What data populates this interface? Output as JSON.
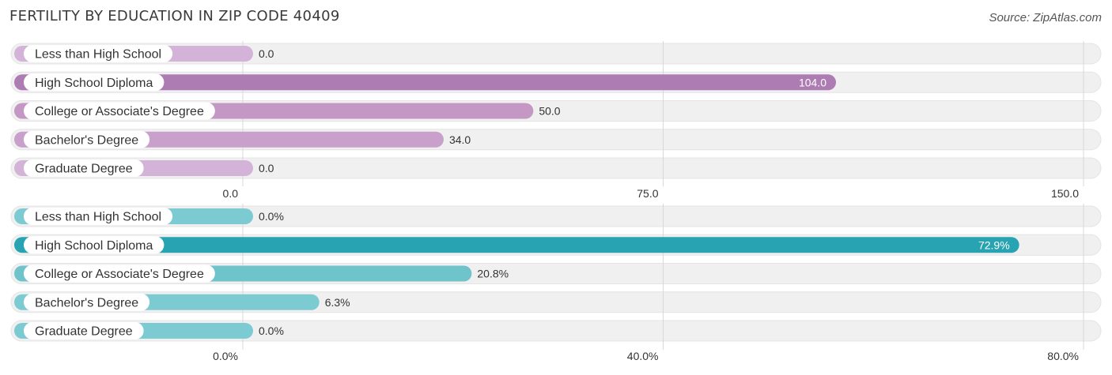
{
  "title": "FERTILITY BY EDUCATION IN ZIP CODE 40409",
  "source": "Source: ZipAtlas.com",
  "chart_data": [
    {
      "type": "bar",
      "orientation": "horizontal",
      "categories": [
        "Less than High School",
        "High School Diploma",
        "College or Associate's Degree",
        "Bachelor's Degree",
        "Graduate Degree"
      ],
      "values": [
        0.0,
        104.0,
        50.0,
        34.0,
        0.0
      ],
      "value_labels": [
        "0.0",
        "104.0",
        "50.0",
        "34.0",
        "0.0"
      ],
      "xlim": [
        0,
        150
      ],
      "ticks": [
        "0.0",
        "75.0",
        "150.0"
      ],
      "tick_values": [
        0,
        75,
        150
      ],
      "colors": [
        "#d4b3d8",
        "#ad7cb3",
        "#c597c5",
        "#c8a0cb",
        "#d4b3d8"
      ],
      "grid": true
    },
    {
      "type": "bar",
      "orientation": "horizontal",
      "categories": [
        "Less than High School",
        "High School Diploma",
        "College or Associate's Degree",
        "Bachelor's Degree",
        "Graduate Degree"
      ],
      "values": [
        0.0,
        72.9,
        20.8,
        6.3,
        0.0
      ],
      "value_labels": [
        "0.0%",
        "72.9%",
        "20.8%",
        "6.3%",
        "0.0%"
      ],
      "xlim": [
        0,
        80
      ],
      "ticks": [
        "0.0%",
        "40.0%",
        "80.0%"
      ],
      "tick_values": [
        0,
        40,
        80
      ],
      "colors": [
        "#7ccbd3",
        "#27a3b1",
        "#6fc4cc",
        "#7ccbd3",
        "#7ccbd3"
      ],
      "grid": true
    }
  ]
}
